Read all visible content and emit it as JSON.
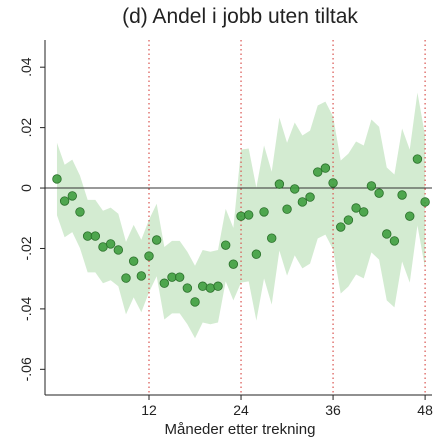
{
  "chart_data": {
    "type": "scatter",
    "title": "(d) Andel i jobb uten tiltak",
    "xlabel": "Måneder etter trekning",
    "x": [
      0,
      1,
      2,
      3,
      4,
      5,
      6,
      7,
      8,
      9,
      10,
      11,
      12,
      13,
      14,
      15,
      16,
      17,
      18,
      19,
      20,
      21,
      22,
      23,
      24,
      25,
      26,
      27,
      28,
      29,
      30,
      31,
      32,
      33,
      34,
      35,
      36,
      37,
      38,
      39,
      40,
      41,
      42,
      43,
      44,
      45,
      46,
      47,
      48
    ],
    "values": [
      0.003,
      -0.0043,
      -0.0026,
      -0.0079,
      -0.0159,
      -0.0159,
      -0.0195,
      -0.0185,
      -0.0205,
      -0.0298,
      -0.0242,
      -0.0291,
      -0.0225,
      -0.0172,
      -0.0315,
      -0.0295,
      -0.0295,
      -0.0331,
      -0.0377,
      -0.0325,
      -0.0331,
      -0.0325,
      -0.0189,
      -0.0252,
      -0.0093,
      -0.0089,
      -0.0219,
      -0.0079,
      -0.0166,
      0.0013,
      -0.007,
      -0.0003,
      -0.0046,
      -0.003,
      0.0053,
      0.0066,
      0.0017,
      -0.0129,
      -0.0106,
      -0.0066,
      -0.0079,
      0.0007,
      -0.0017,
      -0.0152,
      -0.0175,
      -0.0023,
      -0.0093,
      0.0096,
      -0.0046
    ],
    "band": {
      "upper": [
        0.015,
        0.0077,
        0.0094,
        0.0041,
        -0.0039,
        -0.0039,
        -0.0075,
        -0.0065,
        -0.0085,
        -0.0178,
        -0.0122,
        -0.0171,
        -0.0105,
        -0.0052,
        -0.0195,
        -0.0175,
        -0.0175,
        -0.0211,
        -0.0257,
        -0.0205,
        -0.0211,
        -0.0205,
        -0.0069,
        -0.0132,
        0.0127,
        0.0131,
        0.0001,
        0.0141,
        0.0054,
        0.0233,
        0.015,
        0.0217,
        0.0174,
        0.019,
        0.0273,
        0.0286,
        0.0237,
        0.0091,
        0.0114,
        0.0154,
        0.0141,
        0.0227,
        0.0203,
        0.0068,
        0.0045,
        0.0197,
        0.0127,
        0.0316,
        0.0174
      ],
      "lower": [
        -0.009,
        -0.0163,
        -0.0146,
        -0.0199,
        -0.0279,
        -0.0279,
        -0.0315,
        -0.0305,
        -0.0325,
        -0.0418,
        -0.0362,
        -0.0411,
        -0.0345,
        -0.0292,
        -0.0435,
        -0.0415,
        -0.0415,
        -0.0451,
        -0.0497,
        -0.0445,
        -0.0451,
        -0.0445,
        -0.0309,
        -0.0372,
        -0.0313,
        -0.0309,
        -0.0439,
        -0.0299,
        -0.0386,
        -0.0207,
        -0.029,
        -0.0223,
        -0.0266,
        -0.025,
        -0.0167,
        -0.0154,
        -0.0203,
        -0.0349,
        -0.0326,
        -0.0286,
        -0.0299,
        -0.0213,
        -0.0237,
        -0.0372,
        -0.0395,
        -0.0243,
        -0.0313,
        -0.0124,
        -0.0266
      ],
      "color": "#d3ebd1"
    },
    "color": "#3f9e3f",
    "xlim": [
      -1.56,
      48.9
    ],
    "ylim": [
      -0.0685,
      0.049
    ],
    "xticks": [
      12,
      24,
      36,
      48
    ],
    "yticks": [
      {
        "value": 0.04,
        "label": ".04"
      },
      {
        "value": 0.02,
        "label": ".02"
      },
      0,
      {
        "value": -0.02,
        "label": "-.02"
      },
      {
        "value": -0.04,
        "label": "-.04"
      },
      {
        "value": -0.06,
        "label": "-.06"
      }
    ],
    "vlines": [
      12,
      24,
      36,
      48
    ],
    "vline_color": "#d9534f",
    "hline": 0
  }
}
